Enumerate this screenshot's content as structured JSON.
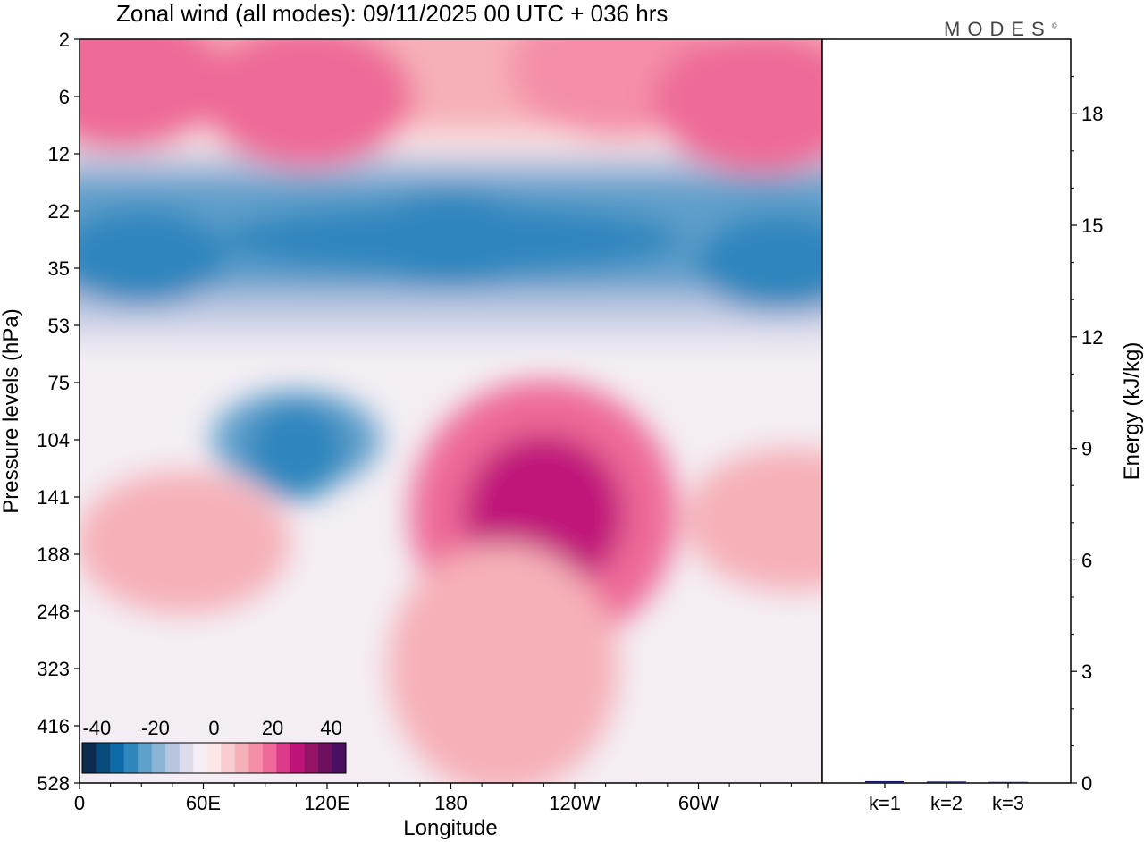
{
  "logo": {
    "text": "MODES",
    "mark": "©"
  },
  "chart_data": [
    {
      "type": "heatmap",
      "title": "Zonal wind (all modes):  09/11/2025  00 UTC  + 036 hrs",
      "xlabel": "Longitude",
      "ylabel": "Pressure levels (hPa)",
      "x_ticks": [
        "0",
        "60E",
        "120E",
        "180",
        "120W",
        "60W"
      ],
      "x_range": [
        0,
        360
      ],
      "y_ticks": [
        "2",
        "6",
        "12",
        "22",
        "35",
        "53",
        "75",
        "104",
        "141",
        "188",
        "248",
        "323",
        "416",
        "528"
      ],
      "colorbar": {
        "tick_labels": [
          "-40",
          "-20",
          "0",
          "20",
          "40"
        ],
        "range": [
          -45,
          45
        ],
        "step": 5,
        "colors": [
          "#0d2c4d",
          "#0a4b7e",
          "#0d6aa6",
          "#2f86bd",
          "#5f9fcb",
          "#8cb4d7",
          "#b7c5df",
          "#dcdcec",
          "#f4eef4",
          "#fde6e6",
          "#f9cdcf",
          "#f6b0b8",
          "#f48fa7",
          "#ee6a98",
          "#dc3a8a",
          "#c0137a",
          "#951466",
          "#6e0f5f",
          "#4a0f60"
        ]
      },
      "regions": [
        {
          "lon": 20,
          "lev": 0.7,
          "value": 20
        },
        {
          "lon": 110,
          "lev": 1.0,
          "value": 20
        },
        {
          "lon": 260,
          "lev": 0.5,
          "value": 15
        },
        {
          "lon": 330,
          "lev": 1.1,
          "value": 20
        },
        {
          "lon": 180,
          "lev": 3.5,
          "value": -30
        },
        {
          "lon": 30,
          "lev": 3.8,
          "value": -30
        },
        {
          "lon": 340,
          "lev": 3.9,
          "value": -30
        },
        {
          "lon": 105,
          "lev": 7.0,
          "value": -25
        },
        {
          "lon": 225,
          "lev": 8.3,
          "value": 30
        },
        {
          "lon": 205,
          "lev": 10.5,
          "value": 20
        },
        {
          "lon": 50,
          "lev": 8.8,
          "value": 10
        },
        {
          "lon": 345,
          "lev": 8.4,
          "value": 10
        },
        {
          "lon": 130,
          "lev": 11.5,
          "value": -5
        }
      ]
    },
    {
      "type": "bar",
      "ylabel": "Energy (kJ/kg)",
      "categories": [
        "k=1",
        "k=2",
        "k=3"
      ],
      "values": [
        0.05,
        0.04,
        0.03
      ],
      "ylim": [
        0,
        20
      ],
      "y_ticks": [
        0,
        3,
        6,
        9,
        12,
        15,
        18
      ]
    }
  ]
}
